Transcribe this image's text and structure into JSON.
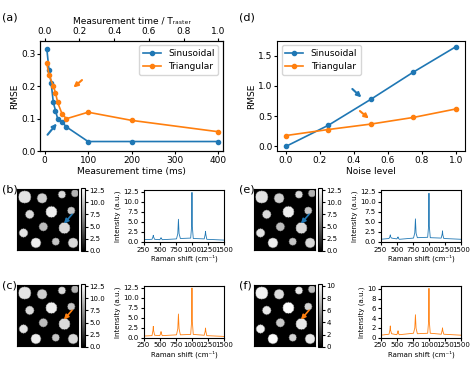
{
  "chart_data": [
    {
      "type": "line",
      "title": "(a)",
      "xlabel": "Measurement time (ms)",
      "ylabel": "RMSE",
      "x2label": "Measurement time / Tᵣₐₛₜₑᵣ",
      "xlim": [
        -10,
        410
      ],
      "xticks": [
        0,
        100,
        200,
        300,
        400
      ],
      "x2lim": [
        -0.025,
        1.025
      ],
      "x2ticks": [
        {
          "value": 0,
          "label": "0.0"
        },
        0.2,
        0.4,
        0.6,
        0.8,
        {
          "value": 1,
          "label": "1.0"
        }
      ],
      "ylim": [
        0,
        0.34
      ],
      "yticks": [
        {
          "value": 0,
          "label": "0.0"
        },
        0.1,
        0.2,
        0.3
      ],
      "legend": "upper right",
      "series": [
        {
          "name": "Sinusoidal",
          "color": "#1f77b4",
          "marker": "circle",
          "x": [
            5,
            10,
            15,
            20,
            25,
            30,
            40,
            50,
            100,
            200,
            400
          ],
          "values": [
            0.315,
            0.25,
            0.21,
            0.15,
            0.125,
            0.1,
            0.09,
            0.075,
            0.03,
            0.03,
            0.03
          ]
        },
        {
          "name": "Triangular",
          "color": "#ff7f0e",
          "marker": "circle",
          "x": [
            5,
            10,
            20,
            25,
            30,
            40,
            50,
            100,
            200,
            400
          ],
          "values": [
            0.27,
            0.235,
            0.2,
            0.18,
            0.15,
            0.115,
            0.1,
            0.12,
            0.095,
            0.06
          ]
        }
      ]
    },
    {
      "type": "line",
      "title": "(d)",
      "xlabel": "Noise level",
      "ylabel": "RMSE",
      "xlim": [
        -0.05,
        1.05
      ],
      "xticks": [
        {
          "value": 0,
          "label": "0.0"
        },
        0.2,
        0.4,
        0.6,
        0.8,
        {
          "value": 1,
          "label": "1.0"
        }
      ],
      "ylim": [
        -0.08,
        1.75
      ],
      "yticks": [
        {
          "value": 0,
          "label": "0.0"
        },
        0.5,
        {
          "value": 1,
          "label": "1.0"
        },
        1.5
      ],
      "legend": "upper left",
      "series": [
        {
          "name": "Sinusoidal",
          "color": "#1f77b4",
          "marker": "circle",
          "x": [
            0,
            0.25,
            0.5,
            0.75,
            1.0
          ],
          "values": [
            0.0,
            0.35,
            0.78,
            1.23,
            1.65
          ]
        },
        {
          "name": "Triangular",
          "color": "#ff7f0e",
          "marker": "circle",
          "x": [
            0,
            0.25,
            0.5,
            0.75,
            1.0
          ],
          "values": [
            0.18,
            0.28,
            0.37,
            0.48,
            0.62
          ]
        }
      ]
    },
    {
      "type": "image",
      "title": "(b)",
      "tick_labels": false,
      "color": "#1f77b4",
      "image_size": 100,
      "blobs": [
        [
          12,
          14,
          10,
          11.5
        ],
        [
          40,
          16,
          8,
          10.5
        ],
        [
          72,
          10,
          6,
          11
        ],
        [
          93,
          8,
          6,
          9
        ],
        [
          20,
          42,
          7,
          11
        ],
        [
          55,
          38,
          9,
          12
        ],
        [
          87,
          36,
          6,
          10
        ],
        [
          10,
          72,
          7,
          11.5
        ],
        [
          42,
          62,
          7,
          9.5
        ],
        [
          76,
          64,
          9,
          11
        ],
        [
          30,
          88,
          8,
          12
        ],
        [
          62,
          86,
          6,
          10
        ],
        [
          90,
          88,
          8,
          11
        ]
      ],
      "colorbar_lim": [
        0,
        12.9
      ],
      "colorbar_ticks": [
        {
          "value": 0,
          "label": "0.0"
        },
        2.5,
        {
          "value": 5,
          "label": "5.0"
        },
        7.5,
        {
          "value": 10,
          "label": "10.0"
        },
        12.5
      ]
    },
    {
      "type": "line",
      "xlabel": "Raman shift (cm⁻¹)",
      "ylabel": "Intensity (a.u.)",
      "xlim": [
        250,
        1500
      ],
      "xticks": [
        250,
        500,
        750,
        1000,
        1250,
        1500
      ],
      "ylim": [
        0,
        12.9
      ],
      "yticks": [
        {
          "value": 0,
          "label": "0.0"
        },
        2.5,
        {
          "value": 5,
          "label": "5.0"
        },
        7.5,
        {
          "value": 10,
          "label": "10.0"
        },
        12.5
      ],
      "series": [
        {
          "color": "#1f77b4",
          "x": [
            250,
            380,
            395,
            400,
            405,
            420,
            500,
            515,
            520,
            525,
            540,
            760,
            780,
            790,
            800,
            820,
            980,
            995,
            1000,
            1005,
            1020,
            1190,
            1205,
            1210,
            1215,
            1230,
            1500
          ],
          "values": [
            0.5,
            0.6,
            1.2,
            1.6,
            1.2,
            0.6,
            0.5,
            0.8,
            1.0,
            0.8,
            0.5,
            0.7,
            2.0,
            5.6,
            2.0,
            0.8,
            0.9,
            4.0,
            12.3,
            4.0,
            0.8,
            0.7,
            1.8,
            2.6,
            1.8,
            0.6,
            0.4
          ]
        }
      ]
    },
    {
      "type": "image",
      "title": "(c)",
      "tick_labels": false,
      "color": "#ff7f0e",
      "image_size": 100,
      "blobs": [
        [
          12,
          14,
          10,
          11.5
        ],
        [
          40,
          16,
          8,
          10.5
        ],
        [
          72,
          10,
          6,
          11
        ],
        [
          93,
          8,
          6,
          9
        ],
        [
          20,
          42,
          7,
          11
        ],
        [
          55,
          38,
          9,
          12
        ],
        [
          87,
          36,
          6,
          10
        ],
        [
          10,
          72,
          7,
          11.5
        ],
        [
          42,
          62,
          7,
          9.5
        ],
        [
          76,
          64,
          9,
          11
        ],
        [
          30,
          88,
          8,
          12
        ],
        [
          62,
          86,
          6,
          10
        ],
        [
          90,
          88,
          8,
          11
        ]
      ],
      "colorbar_lim": [
        0,
        12.9
      ],
      "colorbar_ticks": [
        {
          "value": 0,
          "label": "0.0"
        },
        2.5,
        {
          "value": 5,
          "label": "5.0"
        },
        7.5,
        {
          "value": 10,
          "label": "10.0"
        },
        12.5
      ]
    },
    {
      "type": "line",
      "xlabel": "Raman shift (cm⁻¹)",
      "ylabel": "Intensity (a.u.)",
      "xlim": [
        250,
        1500
      ],
      "xticks": [
        250,
        500,
        750,
        1000,
        1250,
        1500
      ],
      "ylim": [
        0,
        12.9
      ],
      "yticks": [
        {
          "value": 0,
          "label": "0.0"
        },
        2.5,
        {
          "value": 5,
          "label": "5.0"
        },
        7.5,
        {
          "value": 10,
          "label": "10.0"
        },
        12.5
      ],
      "series": [
        {
          "color": "#ff7f0e",
          "x": [
            250,
            380,
            395,
            400,
            405,
            420,
            500,
            515,
            520,
            525,
            540,
            760,
            780,
            790,
            800,
            820,
            980,
            995,
            1000,
            1005,
            1020,
            1190,
            1205,
            1210,
            1215,
            1230,
            1500
          ],
          "values": [
            0.4,
            0.5,
            1.8,
            2.8,
            1.8,
            0.6,
            0.5,
            1.0,
            1.5,
            1.0,
            0.5,
            0.7,
            2.2,
            5.9,
            2.2,
            0.7,
            0.8,
            4.2,
            12.4,
            4.2,
            0.8,
            0.6,
            1.6,
            2.4,
            1.6,
            0.5,
            0.3
          ]
        }
      ]
    },
    {
      "type": "image",
      "title": "(e)",
      "tick_labels": false,
      "color": "#1f77b4",
      "image_size": 100,
      "blobs": [
        [
          12,
          14,
          10,
          11.5
        ],
        [
          40,
          16,
          8,
          10.5
        ],
        [
          72,
          10,
          6,
          11
        ],
        [
          93,
          8,
          6,
          9
        ],
        [
          20,
          42,
          7,
          11
        ],
        [
          55,
          38,
          9,
          12
        ],
        [
          87,
          36,
          6,
          10
        ],
        [
          10,
          72,
          7,
          11.5
        ],
        [
          42,
          62,
          7,
          9.5
        ],
        [
          76,
          64,
          9,
          11
        ],
        [
          30,
          88,
          8,
          12
        ],
        [
          62,
          86,
          6,
          10
        ],
        [
          90,
          88,
          8,
          11
        ]
      ],
      "colorbar_lim": [
        0,
        12.9
      ],
      "colorbar_ticks": [
        {
          "value": 0,
          "label": "0.0"
        },
        2.5,
        {
          "value": 5,
          "label": "5.0"
        },
        7.5,
        {
          "value": 10,
          "label": "10.0"
        },
        12.5
      ]
    },
    {
      "type": "line",
      "xlabel": "Raman shift (cm⁻¹)",
      "ylabel": "Intensity (a.u.)",
      "xlim": [
        250,
        1500
      ],
      "xticks": [
        250,
        500,
        750,
        1000,
        1250,
        1500
      ],
      "ylim": [
        0,
        12.9
      ],
      "yticks": [
        {
          "value": 0,
          "label": "0.0"
        },
        2.5,
        {
          "value": 5,
          "label": "5.0"
        },
        7.5,
        {
          "value": 10,
          "label": "10.0"
        },
        12.5
      ],
      "series": [
        {
          "color": "#1f77b4",
          "x": [
            250,
            380,
            395,
            400,
            405,
            420,
            500,
            515,
            520,
            525,
            540,
            760,
            780,
            790,
            800,
            820,
            980,
            995,
            1000,
            1005,
            1020,
            1190,
            1205,
            1210,
            1215,
            1230,
            1500
          ],
          "values": [
            0.6,
            0.8,
            1.3,
            1.7,
            1.2,
            0.9,
            0.7,
            1.0,
            1.2,
            0.9,
            0.6,
            0.9,
            2.2,
            5.7,
            2.1,
            1.0,
            1.1,
            4.1,
            12.1,
            4.0,
            1.0,
            0.9,
            1.9,
            2.7,
            1.7,
            0.8,
            0.6
          ]
        }
      ]
    },
    {
      "type": "image",
      "title": "(f)",
      "tick_labels": false,
      "color": "#ff7f0e",
      "image_size": 100,
      "blobs": [
        [
          12,
          14,
          10,
          9.8
        ],
        [
          40,
          16,
          8,
          8.9
        ],
        [
          72,
          10,
          6,
          9.4
        ],
        [
          93,
          8,
          6,
          7.6
        ],
        [
          20,
          42,
          7,
          9.4
        ],
        [
          55,
          38,
          9,
          10.2
        ],
        [
          87,
          36,
          6,
          8.5
        ],
        [
          10,
          72,
          7,
          9.8
        ],
        [
          42,
          62,
          7,
          8.1
        ],
        [
          76,
          64,
          9,
          9.4
        ],
        [
          30,
          88,
          8,
          10.2
        ],
        [
          62,
          86,
          6,
          8.5
        ],
        [
          90,
          88,
          8,
          9.4
        ]
      ],
      "colorbar_lim": [
        0,
        10.3
      ],
      "colorbar_ticks": [
        0,
        2,
        4,
        6,
        8,
        10
      ]
    },
    {
      "type": "line",
      "xlabel": "Raman shift (cm⁻¹)",
      "ylabel": "Intensity (a.u.)",
      "xlim": [
        250,
        1500
      ],
      "xticks": [
        250,
        500,
        750,
        1000,
        1250,
        1500
      ],
      "ylim": [
        0,
        10.6
      ],
      "yticks": [
        0,
        2,
        4,
        6,
        8,
        10
      ],
      "series": [
        {
          "color": "#ff7f0e",
          "x": [
            250,
            380,
            395,
            400,
            405,
            420,
            500,
            515,
            520,
            525,
            540,
            760,
            780,
            790,
            800,
            820,
            980,
            995,
            1000,
            1005,
            1020,
            1190,
            1205,
            1210,
            1215,
            1230,
            1500
          ],
          "values": [
            0.5,
            0.7,
            1.6,
            2.4,
            1.5,
            0.8,
            0.6,
            1.0,
            1.4,
            0.9,
            0.6,
            0.9,
            2.0,
            4.7,
            1.9,
            0.8,
            0.9,
            3.5,
            10.1,
            3.4,
            0.9,
            0.7,
            1.5,
            2.0,
            1.4,
            0.7,
            0.5
          ]
        }
      ]
    }
  ]
}
